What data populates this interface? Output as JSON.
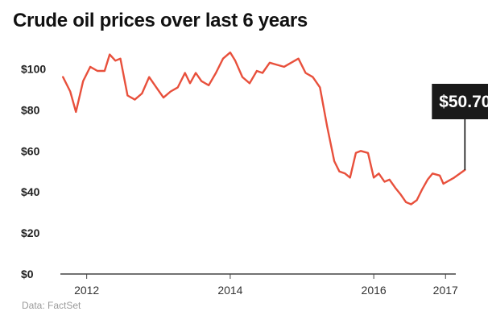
{
  "title": "Crude oil prices over last 6 years",
  "source": "Data: FactSet",
  "chart_data": {
    "type": "line",
    "title": "Crude oil prices over last 6 years",
    "xlabel": "",
    "ylabel": "",
    "x_ticks": [
      "2012",
      "2014",
      "2016",
      "2017"
    ],
    "y_ticks": [
      "$0",
      "$20",
      "$40",
      "$60",
      "$80",
      "$100"
    ],
    "ylim": [
      0,
      110
    ],
    "xlim": [
      2011.6,
      2017.3
    ],
    "grid": false,
    "series": [
      {
        "color": "#e8503c",
        "points": [
          [
            2011.67,
            96
          ],
          [
            2011.77,
            89
          ],
          [
            2011.85,
            79
          ],
          [
            2011.95,
            94
          ],
          [
            2012.05,
            101
          ],
          [
            2012.15,
            99
          ],
          [
            2012.25,
            99
          ],
          [
            2012.32,
            107
          ],
          [
            2012.4,
            104
          ],
          [
            2012.47,
            105
          ],
          [
            2012.57,
            87
          ],
          [
            2012.67,
            85
          ],
          [
            2012.77,
            88
          ],
          [
            2012.87,
            96
          ],
          [
            2012.97,
            91
          ],
          [
            2013.07,
            86
          ],
          [
            2013.17,
            89
          ],
          [
            2013.27,
            91
          ],
          [
            2013.37,
            98
          ],
          [
            2013.44,
            93
          ],
          [
            2013.52,
            98
          ],
          [
            2013.6,
            94
          ],
          [
            2013.7,
            92
          ],
          [
            2013.8,
            98
          ],
          [
            2013.9,
            105
          ],
          [
            2014.0,
            108
          ],
          [
            2014.07,
            104
          ],
          [
            2014.17,
            96
          ],
          [
            2014.27,
            93
          ],
          [
            2014.37,
            99
          ],
          [
            2014.45,
            98
          ],
          [
            2014.55,
            103
          ],
          [
            2014.65,
            102
          ],
          [
            2014.75,
            101
          ],
          [
            2014.85,
            103
          ],
          [
            2014.95,
            105
          ],
          [
            2015.05,
            98
          ],
          [
            2015.15,
            96
          ],
          [
            2015.25,
            91
          ],
          [
            2015.35,
            72
          ],
          [
            2015.45,
            55
          ],
          [
            2015.52,
            50
          ],
          [
            2015.6,
            49
          ],
          [
            2015.67,
            47
          ],
          [
            2015.75,
            59
          ],
          [
            2015.82,
            60
          ],
          [
            2015.92,
            59
          ],
          [
            2016.0,
            47
          ],
          [
            2016.07,
            49
          ],
          [
            2016.15,
            45
          ],
          [
            2016.22,
            46
          ],
          [
            2016.3,
            42
          ],
          [
            2016.37,
            39
          ],
          [
            2016.45,
            35
          ],
          [
            2016.52,
            34
          ],
          [
            2016.6,
            36
          ],
          [
            2016.67,
            41
          ],
          [
            2016.75,
            46
          ],
          [
            2016.82,
            49
          ],
          [
            2016.92,
            48
          ],
          [
            2016.97,
            44
          ],
          [
            2017.12,
            47
          ],
          [
            2017.27,
            50.7
          ]
        ]
      }
    ],
    "callout": {
      "label": "$50.70",
      "value": 50.7,
      "x": 2017.27
    }
  }
}
